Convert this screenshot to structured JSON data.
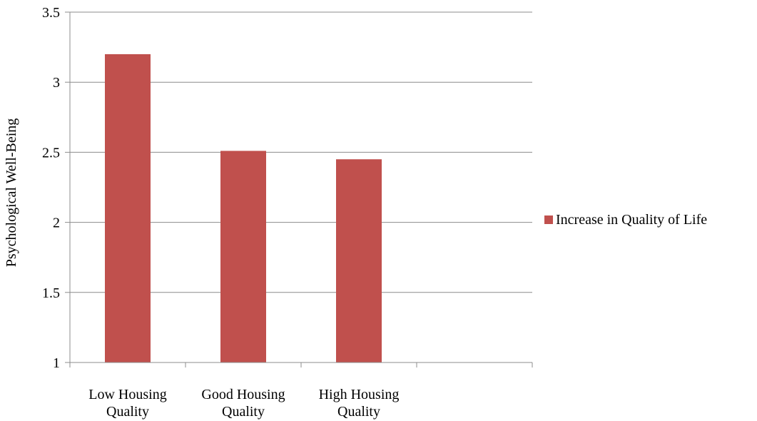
{
  "chart_data": {
    "type": "bar",
    "categories": [
      [
        "Low Housing",
        "Quality"
      ],
      [
        "Good Housing",
        "Quality"
      ],
      [
        "High Housing",
        "Quality"
      ],
      [
        "",
        ""
      ]
    ],
    "series": [
      {
        "name": "Increase in Quality of Life",
        "values": [
          3.2,
          2.51,
          2.45,
          null
        ],
        "color": "#c0504d"
      }
    ],
    "ylabel": "Psychological Well-Being",
    "xlabel": "",
    "ylim": [
      1,
      3.5
    ],
    "yticks": [
      1,
      1.5,
      2,
      2.5,
      3,
      3.5
    ],
    "ytick_labels": [
      "1",
      "1.5",
      "2",
      "2.5",
      "3",
      "3.5"
    ],
    "grid": true,
    "gridline_color": "#8c8c8c",
    "legend_position": "right"
  }
}
